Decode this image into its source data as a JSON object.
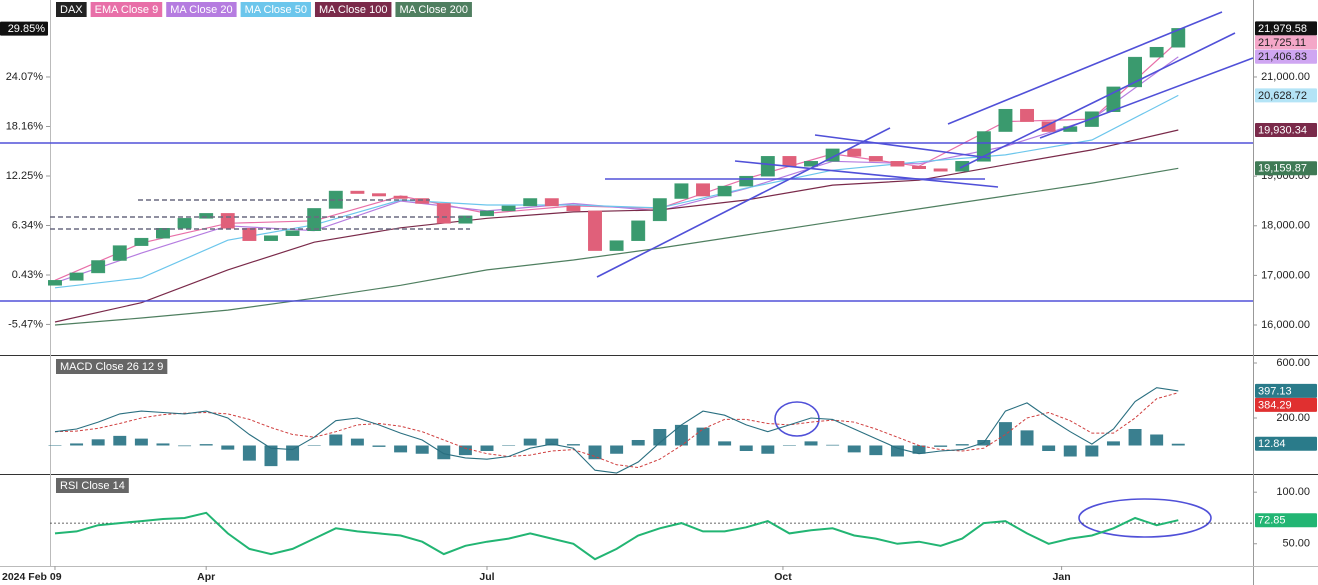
{
  "chart_data": [
    {
      "type": "candlestick",
      "name": "DAX",
      "xlim": [
        -0.23,
        55.46
      ],
      "open": [
        16800,
        16900,
        17050,
        17300,
        17600,
        17750,
        17950,
        18150,
        18250,
        17950,
        17700,
        17800,
        17900,
        18350,
        18700,
        18650,
        18600,
        18550,
        18450,
        18050,
        18200,
        18300,
        18400,
        18550,
        18400,
        18300,
        17500,
        17700,
        18100,
        18550,
        18850,
        18600,
        18800,
        19000,
        19400,
        19200,
        19300,
        19550,
        19400,
        19300,
        19200,
        19150,
        19100,
        19300,
        19900,
        20350,
        20100,
        19900,
        20000,
        20300,
        20800,
        21400,
        21600
      ],
      "close": [
        16900,
        17050,
        17300,
        17600,
        17750,
        17950,
        18150,
        18250,
        17950,
        17700,
        17800,
        17900,
        18350,
        18700,
        18650,
        18600,
        18550,
        18450,
        18050,
        18200,
        18300,
        18400,
        18550,
        18400,
        18300,
        17500,
        17700,
        18100,
        18550,
        18850,
        18600,
        18800,
        19000,
        19400,
        19200,
        19300,
        19550,
        19400,
        19300,
        19200,
        19150,
        19100,
        19300,
        19900,
        20350,
        20100,
        19900,
        20000,
        20300,
        20800,
        21400,
        21600,
        21979.58
      ],
      "up_color": "#3a9a6e",
      "down_color": "#e0607a",
      "ma_x": [
        0,
        4,
        8,
        12,
        16,
        20,
        24,
        28,
        32,
        36,
        40,
        44,
        48,
        52
      ],
      "series": [
        {
          "name": "EMA Close 9",
          "color": "#e86fa8",
          "values": [
            16900,
            17650,
            18050,
            18100,
            18600,
            18250,
            18400,
            18350,
            18950,
            19450,
            19200,
            20100,
            20150,
            21725.11
          ]
        },
        {
          "name": "MA Close 20",
          "color": "#b57ce0",
          "values": [
            16850,
            17450,
            18000,
            17900,
            18500,
            18300,
            18450,
            18300,
            18750,
            19300,
            19250,
            19600,
            20150,
            21406.83
          ]
        },
        {
          "name": "MA Close 50",
          "color": "#6cc6ec",
          "values": [
            16750,
            16950,
            17710,
            18020,
            18520,
            18420,
            18420,
            18360,
            18760,
            19120,
            19290,
            19430,
            19730,
            20628.72
          ]
        },
        {
          "name": "MA Close 100",
          "color": "#7a2a4a",
          "values": [
            16060,
            16450,
            17110,
            17670,
            17960,
            18150,
            18280,
            18320,
            18520,
            18820,
            18920,
            19230,
            19530,
            19930.34
          ]
        },
        {
          "name": "MA Close 200",
          "color": "#4f7f60",
          "values": [
            16000,
            16140,
            16300,
            16540,
            16800,
            17110,
            17310,
            17550,
            17815,
            18080,
            18340,
            18600,
            18860,
            19159.87
          ]
        }
      ],
      "ylim": [
        15395,
        22552
      ],
      "yticks": [
        {
          "value": 16000,
          "label": "16,000.00"
        },
        {
          "value": 17000,
          "label": "17,000.00"
        },
        {
          "value": 18000,
          "label": "18,000.00"
        },
        {
          "value": 19000,
          "label": "19,000.00"
        },
        {
          "value": 21000,
          "label": "21,000.00"
        }
      ],
      "y2lim": [
        -9.12,
        33.26
      ],
      "y2ticks": [
        {
          "value": 24.07,
          "label": "24.07%"
        },
        {
          "value": 18.16,
          "label": "18.16%"
        },
        {
          "value": 12.25,
          "label": "12.25%"
        },
        {
          "value": 6.34,
          "label": "6.34%"
        },
        {
          "value": 0.43,
          "label": "0.43%"
        },
        {
          "value": -5.47,
          "label": "-5.47%"
        }
      ],
      "y2_badge": {
        "value": 29.85,
        "label": "29.85%",
        "color": "#111111",
        "text_color": "#ffffff"
      },
      "last_labels": [
        {
          "value": 21979.58,
          "label": "21,979.58",
          "color": "#111111",
          "text_color": "#ffffff"
        },
        {
          "value": 21725.11,
          "label": "21,725.11",
          "color": "#f4a7c8",
          "text_color": "#222222"
        },
        {
          "value": 21406.83,
          "label": "21,406.83",
          "color": "#cfa6f2",
          "text_color": "#222222"
        },
        {
          "value": 20628.72,
          "label": "20,628.72",
          "color": "#b4e4f6",
          "text_color": "#222222"
        },
        {
          "value": 19930.34,
          "label": "19,930.34",
          "color": "#7a2a4a",
          "text_color": "#ffffff"
        },
        {
          "value": 19159.87,
          "label": "19,159.87",
          "color": "#3f7a55",
          "text_color": "#ffffff"
        }
      ]
    },
    {
      "type": "macd",
      "title": "MACD Close 26 12 9",
      "xlim": [
        -0.23,
        55.46
      ],
      "macd": [
        100,
        120,
        170,
        230,
        250,
        240,
        230,
        250,
        200,
        80,
        -20,
        -30,
        60,
        180,
        200,
        150,
        90,
        40,
        -60,
        -90,
        -100,
        -80,
        -20,
        10,
        -20,
        -180,
        -200,
        -120,
        20,
        150,
        250,
        220,
        150,
        100,
        150,
        200,
        190,
        120,
        50,
        -20,
        -60,
        -40,
        -30,
        20,
        250,
        310,
        200,
        100,
        10,
        120,
        320,
        420,
        397.13
      ],
      "signal": [
        100,
        105,
        125,
        160,
        200,
        225,
        235,
        240,
        230,
        190,
        130,
        80,
        60,
        100,
        150,
        160,
        140,
        100,
        40,
        -20,
        -60,
        -80,
        -70,
        -40,
        -30,
        -80,
        -140,
        -160,
        -100,
        0,
        120,
        190,
        190,
        160,
        150,
        170,
        185,
        170,
        120,
        60,
        0,
        -30,
        -40,
        -20,
        80,
        200,
        240,
        180,
        90,
        90,
        200,
        340,
        384.29
      ],
      "histogram": [
        0,
        15,
        45,
        70,
        50,
        15,
        -5,
        10,
        -30,
        -110,
        -150,
        -110,
        0,
        80,
        50,
        -10,
        -50,
        -60,
        -100,
        -70,
        -40,
        0,
        50,
        50,
        10,
        -100,
        -60,
        40,
        120,
        150,
        130,
        30,
        -40,
        -60,
        0,
        30,
        5,
        -50,
        -70,
        -80,
        -60,
        -10,
        10,
        40,
        170,
        110,
        -40,
        -80,
        -80,
        30,
        120,
        80,
        12.84
      ],
      "macd_color": "#2a6f80",
      "signal_color": "#d04040",
      "histogram_color": "#3a7f8f",
      "ylim": [
        -200,
        643.6
      ],
      "yticks": [
        {
          "value": 600,
          "label": "600.00"
        },
        {
          "value": 200,
          "label": "200.00"
        }
      ],
      "last_labels": [
        {
          "value": 397.13,
          "label": "397.13",
          "color": "#2a7b8a",
          "text_color": "#ffffff"
        },
        {
          "value": 384.29,
          "label": "384.29",
          "color": "#e03030",
          "text_color": "#ffffff"
        },
        {
          "value": 12.84,
          "label": "12.84",
          "color": "#2a7b8a",
          "text_color": "#ffffff"
        }
      ]
    },
    {
      "type": "rsi",
      "title": "RSI Close 14",
      "xlim": [
        -0.23,
        55.46
      ],
      "values": [
        60,
        62,
        68,
        70,
        72,
        74,
        75,
        80,
        60,
        45,
        40,
        45,
        55,
        65,
        62,
        60,
        58,
        52,
        40,
        48,
        52,
        55,
        60,
        55,
        50,
        35,
        45,
        58,
        65,
        70,
        62,
        62,
        66,
        72,
        60,
        63,
        65,
        58,
        55,
        50,
        52,
        48,
        55,
        70,
        72,
        60,
        50,
        55,
        58,
        65,
        75,
        68,
        72.85
      ],
      "color": "#22b573",
      "level": 70,
      "ylim": [
        29.4,
        115.7
      ],
      "yticks": [
        {
          "value": 100,
          "label": "100.00"
        },
        {
          "value": 50,
          "label": "50.00"
        }
      ],
      "last_labels": [
        {
          "value": 72.85,
          "label": "72.85",
          "color": "#22b573",
          "text_color": "#ffffff"
        }
      ],
      "xticks": [
        {
          "value": 0,
          "label": "2024 Feb 09"
        },
        {
          "value": 7,
          "label": "Apr"
        },
        {
          "value": 20,
          "label": "Jul"
        },
        {
          "value": 33.7,
          "label": "Oct"
        },
        {
          "value": 46.6,
          "label": "Jan"
        }
      ]
    }
  ]
}
